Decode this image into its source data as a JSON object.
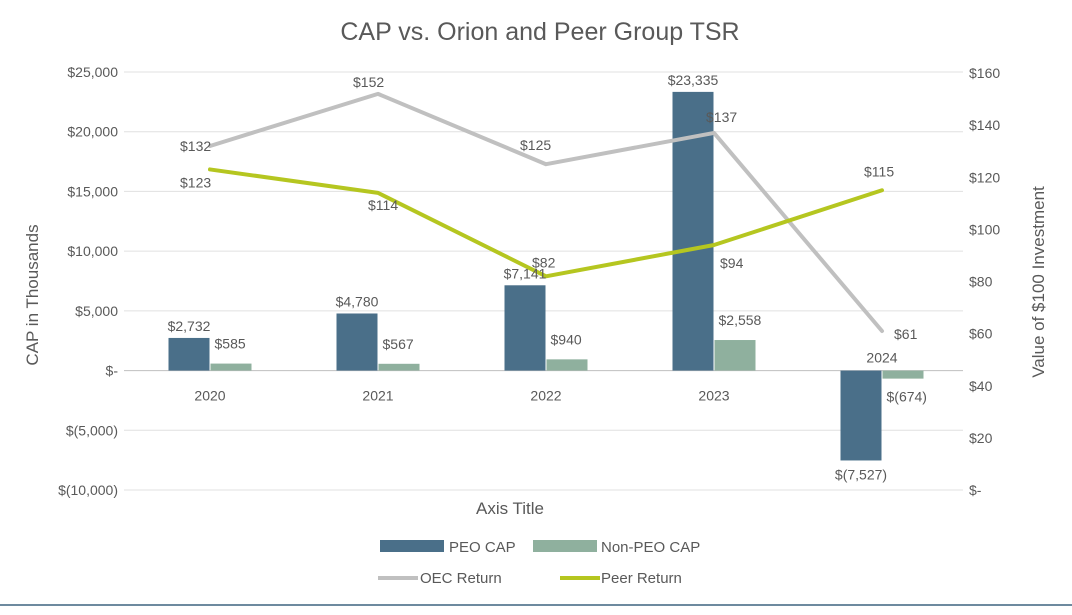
{
  "chart_data": {
    "type": "bar+line",
    "title": "CAP vs. Orion and Peer Group TSR",
    "xlabel": "Axis Title",
    "ylabel_left": "CAP in Thousands",
    "ylabel_right": "Value of $100 Investment",
    "categories": [
      "2020",
      "2021",
      "2022",
      "2023",
      "2024"
    ],
    "y_left": {
      "min": -10000,
      "max": 25000,
      "ticks": [
        25000,
        20000,
        15000,
        10000,
        5000,
        0,
        -5000,
        -10000
      ],
      "tick_labels": [
        "$25,000",
        "$20,000",
        "$15,000",
        "$10,000",
        "$5,000",
        "$-",
        "$(5,000)",
        "$(10,000)"
      ]
    },
    "y_right": {
      "min": 0,
      "max": 160,
      "ticks": [
        160,
        140,
        120,
        100,
        80,
        60,
        40,
        20,
        0
      ],
      "tick_labels": [
        "$160",
        "$140",
        "$120",
        "$100",
        "$80",
        "$60",
        "$40",
        "$20",
        "$-"
      ]
    },
    "bar_series": [
      {
        "name": "PEO CAP",
        "color": "#4a6f89",
        "values": [
          2732,
          4780,
          7141,
          23335,
          -7527
        ],
        "labels": [
          "$2,732",
          "$4,780",
          "$7,141",
          "$23,335",
          "$(7,527)"
        ]
      },
      {
        "name": "Non-PEO CAP",
        "color": "#8fb09e",
        "values": [
          585,
          567,
          940,
          2558,
          -674
        ],
        "labels": [
          "$585",
          "$567",
          "$940",
          "$2,558",
          "$(674)"
        ]
      }
    ],
    "line_series": [
      {
        "name": "OEC Return",
        "color": "#c0c0c0",
        "values": [
          132,
          152,
          125,
          137,
          61
        ],
        "labels": [
          "$132",
          "$152",
          "$125",
          "$137",
          "$61"
        ]
      },
      {
        "name": "Peer Return",
        "color": "#b5c620",
        "values": [
          123,
          114,
          82,
          94,
          115
        ],
        "labels": [
          "$123",
          "$114",
          "$82",
          "$94",
          "$115"
        ]
      }
    ],
    "legend": {
      "position": "bottom",
      "items": [
        "PEO CAP",
        "Non-PEO CAP",
        "OEC Return",
        "Peer Return"
      ]
    },
    "grid": true
  }
}
